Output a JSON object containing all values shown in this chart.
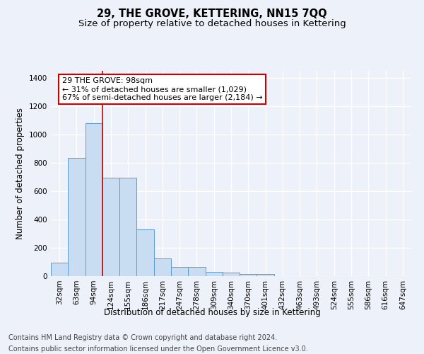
{
  "title": "29, THE GROVE, KETTERING, NN15 7QQ",
  "subtitle": "Size of property relative to detached houses in Kettering",
  "xlabel": "Distribution of detached houses by size in Kettering",
  "ylabel": "Number of detached properties",
  "categories": [
    "32sqm",
    "63sqm",
    "94sqm",
    "124sqm",
    "155sqm",
    "186sqm",
    "217sqm",
    "247sqm",
    "278sqm",
    "309sqm",
    "340sqm",
    "370sqm",
    "401sqm",
    "432sqm",
    "463sqm",
    "493sqm",
    "524sqm",
    "555sqm",
    "586sqm",
    "616sqm",
    "647sqm"
  ],
  "values": [
    95,
    835,
    1080,
    695,
    695,
    330,
    125,
    65,
    65,
    30,
    25,
    15,
    15,
    0,
    0,
    0,
    0,
    0,
    0,
    0,
    0
  ],
  "bar_color": "#c9ddf2",
  "bar_edge_color": "#5b9bd5",
  "vline_x": 2.5,
  "vline_color": "#cc0000",
  "annotation_text": "29 THE GROVE: 98sqm\n← 31% of detached houses are smaller (1,029)\n67% of semi-detached houses are larger (2,184) →",
  "annotation_box_color": "#ffffff",
  "annotation_box_edge": "#cc0000",
  "ylim": [
    0,
    1450
  ],
  "yticks": [
    0,
    200,
    400,
    600,
    800,
    1000,
    1200,
    1400
  ],
  "footer_line1": "Contains HM Land Registry data © Crown copyright and database right 2024.",
  "footer_line2": "Contains public sector information licensed under the Open Government Licence v3.0.",
  "bg_color": "#edf2fa",
  "plot_bg_color": "#edf2fa",
  "grid_color": "#ffffff",
  "title_fontsize": 10.5,
  "subtitle_fontsize": 9.5,
  "xlabel_fontsize": 8.5,
  "ylabel_fontsize": 8.5,
  "tick_fontsize": 7.5,
  "footer_fontsize": 7,
  "annotation_fontsize": 8
}
